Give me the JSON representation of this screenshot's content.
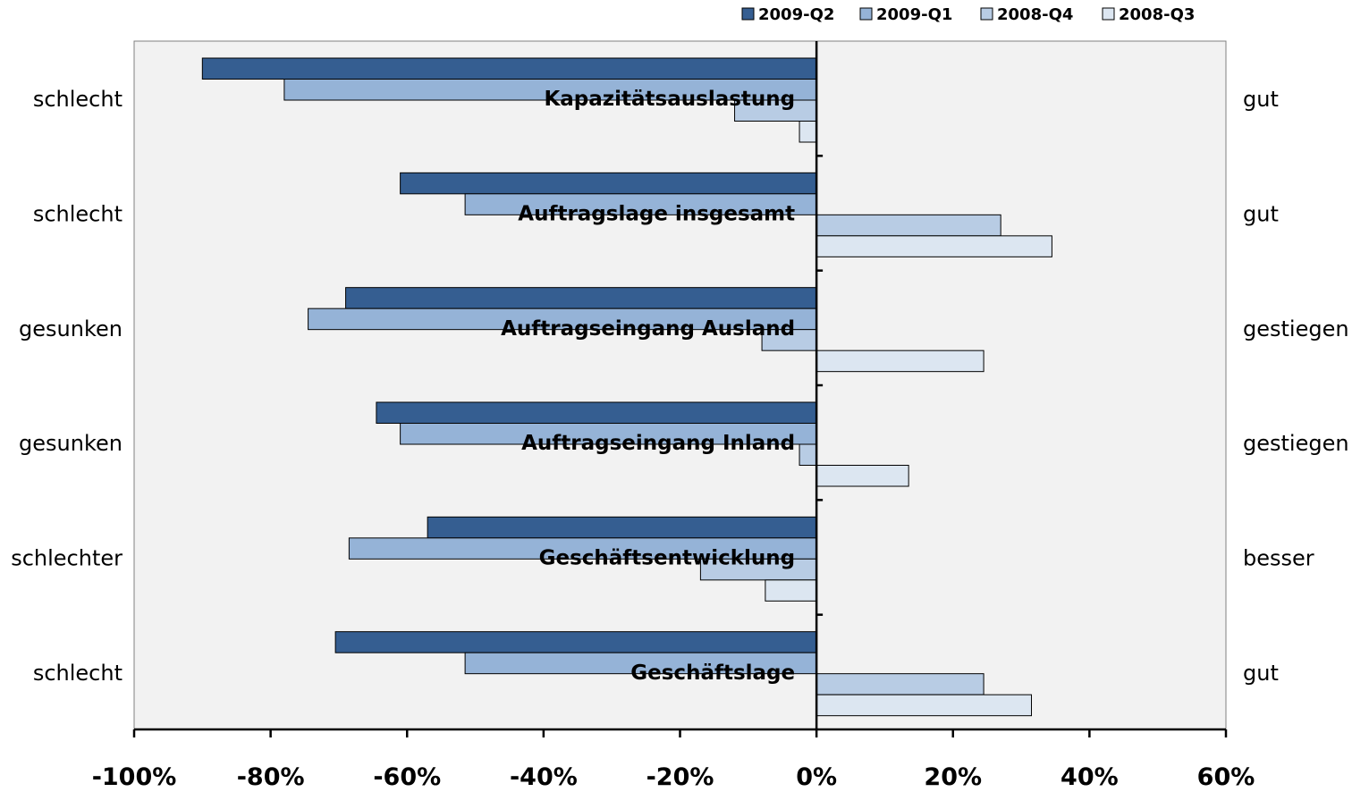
{
  "chart_data": {
    "type": "bar",
    "orientation": "horizontal",
    "title": "",
    "xlabel": "",
    "ylabel": "",
    "xlim": [
      -100,
      60
    ],
    "x_ticks": [
      "-100%",
      "-80%",
      "-60%",
      "-40%",
      "-20%",
      "0%",
      "20%",
      "40%",
      "60%"
    ],
    "x_tick_values": [
      -100,
      -80,
      -60,
      -40,
      -20,
      0,
      20,
      40,
      60
    ],
    "grid": false,
    "legend_position": "top-right",
    "legend_order": [
      "2009-Q2",
      "2009-Q1",
      "2008-Q4",
      "2008-Q3"
    ],
    "categories": [
      "Kapazitätsauslastung",
      "Auftragslage insgesamt",
      "Auftragseingang Ausland",
      "Auftragseingang Inland",
      "Geschäftsentwicklung",
      "Geschäftslage"
    ],
    "left_labels": [
      "schlecht",
      "schlecht",
      "gesunken",
      "gesunken",
      "schlechter",
      "schlecht"
    ],
    "right_labels": [
      "gut",
      "gut",
      "gestiegen",
      "gestiegen",
      "besser",
      "gut"
    ],
    "series": [
      {
        "name": "2009-Q2",
        "color": "#355e91",
        "values": [
          -90,
          -61,
          -69,
          -64.5,
          -57,
          -70.5
        ]
      },
      {
        "name": "2009-Q1",
        "color": "#95b3d7",
        "values": [
          -78,
          -51.5,
          -74.5,
          -61,
          -68.5,
          -51.5
        ]
      },
      {
        "name": "2008-Q4",
        "color": "#b8cce4",
        "values": [
          -12,
          27,
          -8,
          -2.5,
          -17,
          24.5
        ]
      },
      {
        "name": "2008-Q3",
        "color": "#dce6f1",
        "values": [
          -2.5,
          34.5,
          24.5,
          13.5,
          -7.5,
          31.5
        ]
      }
    ],
    "plot_background": "#f2f2f2"
  }
}
